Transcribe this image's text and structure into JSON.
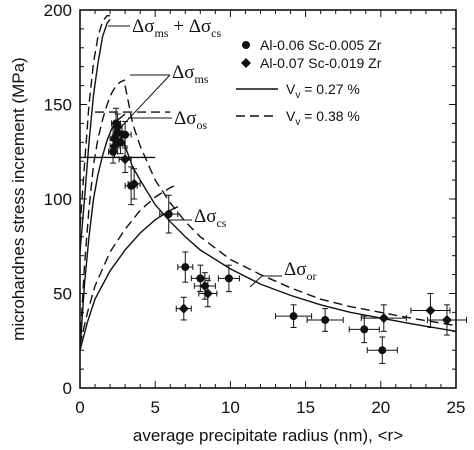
{
  "chart_data": {
    "type": "scatter",
    "xlabel": "average precipitate radius (nm), <r>",
    "ylabel": "microhardnes stress increment (MPa)",
    "xlim": [
      0,
      25
    ],
    "ylim": [
      0,
      200
    ],
    "xticks": [
      "0",
      "5",
      "10",
      "15",
      "20",
      "25"
    ],
    "yticks": [
      "0",
      "50",
      "100",
      "150",
      "200"
    ],
    "legend_position": "top-right",
    "legend": [
      {
        "label": "Al-0.06 Sc-0.005 Zr",
        "marker": "circle"
      },
      {
        "label": "Al-0.07 Sc-0.019 Zr",
        "marker": "diamond"
      },
      {
        "label_main": "V",
        "label_sub": "v",
        "label_rest": " = 0.27 %",
        "line": "solid"
      },
      {
        "label_main": "V",
        "label_sub": "v",
        "label_rest": " = 0.38 %",
        "line": "dashed"
      }
    ],
    "annotations": [
      {
        "sym": "Δσ",
        "sub": "ms",
        "plus": " + Δσ",
        "sub2": "cs"
      },
      {
        "sym": "Δσ",
        "sub": "ms"
      },
      {
        "sym": "Δσ",
        "sub": "os"
      },
      {
        "sym": "Δσ",
        "sub": "cs"
      },
      {
        "sym": "Δσ",
        "sub": "or"
      }
    ],
    "series": [
      {
        "name": "Al-0.06 Sc-0.005 Zr",
        "marker": "circle",
        "points": [
          {
            "x": 2.2,
            "y": 125,
            "ex": 0.3,
            "ey": 6
          },
          {
            "x": 2.3,
            "y": 132,
            "ex": 0.3,
            "ey": 6
          },
          {
            "x": 2.4,
            "y": 140,
            "ex": 0.3,
            "ey": 8
          },
          {
            "x": 2.5,
            "y": 135,
            "ex": 0.3,
            "ey": 6
          },
          {
            "x": 2.7,
            "y": 130,
            "ex": 0.3,
            "ey": 6
          },
          {
            "x": 3.0,
            "y": 134,
            "ex": 0.4,
            "ey": 7
          },
          {
            "x": 3.4,
            "y": 107,
            "ex": 0.4,
            "ey": 10
          },
          {
            "x": 5.9,
            "y": 92,
            "ex": 0.6,
            "ey": 10
          },
          {
            "x": 7.0,
            "y": 64,
            "ex": 0.5,
            "ey": 8
          },
          {
            "x": 8.0,
            "y": 58,
            "ex": 0.6,
            "ey": 7
          },
          {
            "x": 9.9,
            "y": 58,
            "ex": 0.7,
            "ey": 7
          },
          {
            "x": 14.2,
            "y": 38,
            "ex": 1.2,
            "ey": 6
          },
          {
            "x": 16.3,
            "y": 36,
            "ex": 1.2,
            "ey": 6
          },
          {
            "x": 18.9,
            "y": 31,
            "ex": 1.0,
            "ey": 7
          },
          {
            "x": 20.1,
            "y": 20,
            "ex": 1.0,
            "ey": 7
          }
        ]
      },
      {
        "name": "Al-0.07 Sc-0.019 Zr",
        "marker": "diamond",
        "points": [
          {
            "x": 2.3,
            "y": 128,
            "ex": 0.3,
            "ey": 6
          },
          {
            "x": 2.5,
            "y": 138,
            "ex": 0.3,
            "ey": 7
          },
          {
            "x": 3.0,
            "y": 121,
            "ex": 0.4,
            "ey": 7
          },
          {
            "x": 3.6,
            "y": 108,
            "ex": 0.4,
            "ey": 8
          },
          {
            "x": 6.9,
            "y": 42,
            "ex": 0.5,
            "ey": 6
          },
          {
            "x": 8.3,
            "y": 54,
            "ex": 0.7,
            "ey": 7
          },
          {
            "x": 8.5,
            "y": 50,
            "ex": 0.6,
            "ey": 7
          },
          {
            "x": 20.2,
            "y": 37,
            "ex": 1.5,
            "ey": 7
          },
          {
            "x": 23.3,
            "y": 41,
            "ex": 1.3,
            "ey": 9
          },
          {
            "x": 24.4,
            "y": 36,
            "ex": 1.3,
            "ey": 8
          }
        ]
      },
      {
        "name": "V = 0.27 %",
        "line": "solid",
        "curves": [
          {
            "x": [
              0.0,
              0.3,
              0.6,
              0.9,
              1.2,
              1.5,
              1.8,
              2.0
            ],
            "y": [
              72,
              100,
              130,
              155,
              172,
              186,
              193,
              195
            ]
          },
          {
            "x": [
              0.0,
              0.3,
              0.6,
              0.9,
              1.2,
              1.5,
              1.8,
              2.1,
              2.4,
              2.7,
              3.0
            ],
            "y": [
              20,
              55,
              80,
              100,
              113,
              123,
              131,
              137,
              141,
              143,
              145
            ]
          },
          {
            "x": [
              0.0,
              0.5,
              1.0,
              2.0,
              3.0,
              4.0,
              5.0,
              6.0,
              6.5
            ],
            "y": [
              20,
              35,
              47,
              62,
              73,
              82,
              89,
              94,
              96
            ]
          },
          {
            "x": [
              2.5,
              3.0,
              3.5,
              4.0,
              5.0,
              6.0,
              7.0,
              8.0,
              10.0,
              12.0,
              14.0,
              16.0,
              18.0,
              20.0,
              22.0,
              25.0
            ],
            "y": [
              138,
              128,
              117,
              110,
              97,
              88,
              80,
              73,
              63,
              55,
              49,
              44,
              40,
              37,
              34,
              30
            ]
          }
        ],
        "hline": {
          "y": 122,
          "x": [
            0.0,
            5.0
          ]
        }
      },
      {
        "name": "V = 0.38 %",
        "line": "dashed",
        "curves": [
          {
            "x": [
              0.0,
              0.3,
              0.6,
              0.9,
              1.2,
              1.5,
              1.8,
              2.0
            ],
            "y": [
              85,
              118,
              150,
              172,
              186,
              194,
              197,
              197
            ]
          },
          {
            "x": [
              0.0,
              0.3,
              0.6,
              0.9,
              1.2,
              1.5,
              1.8,
              2.1,
              2.4,
              2.7,
              3.0
            ],
            "y": [
              23,
              65,
              95,
              118,
              132,
              142,
              150,
              156,
              160,
              162,
              163
            ]
          },
          {
            "x": [
              0.0,
              0.5,
              1.0,
              2.0,
              3.0,
              4.0,
              5.0,
              6.0,
              6.5
            ],
            "y": [
              23,
              40,
              54,
              72,
              84,
              94,
              101,
              106,
              108
            ]
          },
          {
            "x": [
              3.0,
              3.5,
              4.0,
              5.0,
              6.0,
              7.0,
              8.0,
              10.0,
              12.0,
              14.0,
              16.0,
              18.0,
              20.0,
              22.0,
              25.0
            ],
            "y": [
              160,
              140,
              128,
              110,
              98,
              88,
              80,
              68,
              60,
              53,
              47,
              43,
              40,
              37,
              33
            ]
          }
        ],
        "hline": {
          "y": 146,
          "x": [
            1.0,
            6.0
          ]
        }
      }
    ]
  }
}
